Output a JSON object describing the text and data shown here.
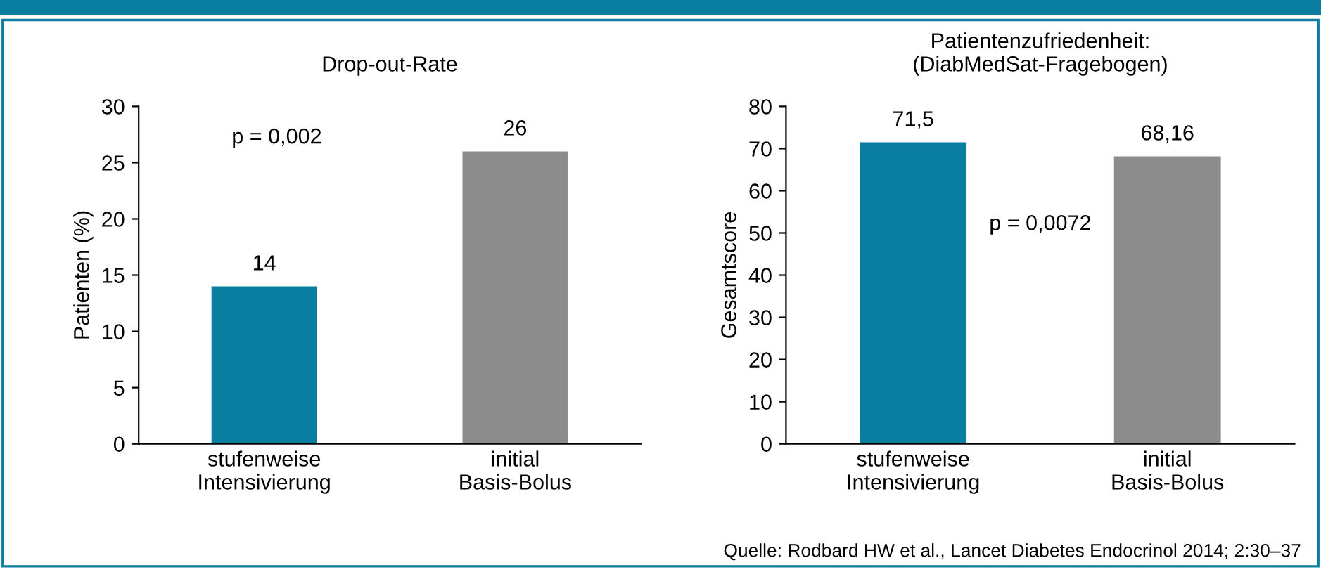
{
  "chart_data": [
    {
      "type": "bar",
      "title": "Drop-out-Rate",
      "ylabel": "Patienten (%)",
      "categories": [
        "stufenweise\nIntensivierung",
        "initial\nBasis-Bolus"
      ],
      "values": [
        14,
        26
      ],
      "colors": [
        "#0a7ea0",
        "#8c8c8c"
      ],
      "ylim": [
        0,
        30
      ],
      "yticks": [
        0,
        5,
        10,
        15,
        20,
        25,
        30
      ],
      "data_labels": true,
      "grid": false,
      "annotations": [
        "p = 0,002"
      ]
    },
    {
      "type": "bar",
      "title": "Patientenzufriedenheit:\n(DiabMedSat-Fragebogen)",
      "ylabel": "Gesamtscore",
      "categories": [
        "stufenweise\nIntensivierung",
        "initial\nBasis-Bolus"
      ],
      "values": [
        71.5,
        68.16
      ],
      "value_labels": [
        "71,5",
        "68,16"
      ],
      "colors": [
        "#0a7ea0",
        "#8c8c8c"
      ],
      "ylim": [
        0,
        80
      ],
      "yticks": [
        0,
        10,
        20,
        30,
        40,
        50,
        60,
        70,
        80
      ],
      "grid": false,
      "annotations": [
        "p = 0,0072",
        "Quelle: Rodbard HW et al., Lancet Diabetes Endocrinol 2014; 2:30–37"
      ]
    }
  ]
}
